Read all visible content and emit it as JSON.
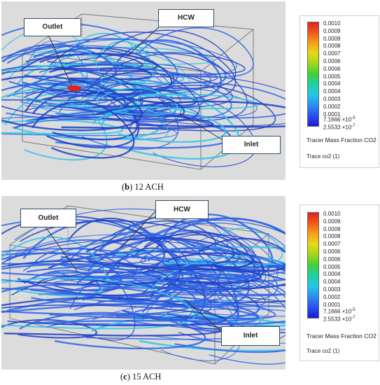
{
  "panels": [
    {
      "id": "b",
      "caption_letter": "b",
      "caption_text": "12 ACH",
      "labels": {
        "outlet": "Outlet",
        "hcw": "HCW",
        "inlet": "Inlet"
      },
      "legend": {
        "ticks": [
          "0.0010",
          "0.0009",
          "0.0009",
          "0.0008",
          "0.0007",
          "0.0006",
          "0.0006",
          "0.0005",
          "0.0004",
          "0.0004",
          "0.0003",
          "0.0002",
          "0.0001"
        ],
        "tick_low_1": "7.1666",
        "tick_low_1_exp": "×10",
        "tick_low_1_sup": "-5",
        "tick_low_2": "2.5533",
        "tick_low_2_exp": "×10",
        "tick_low_2_sup": "-7",
        "title": "Tracer Mass Fraction CO2",
        "trace": "Trace co2 (1)"
      }
    },
    {
      "id": "c",
      "caption_letter": "c",
      "caption_text": "15 ACH",
      "labels": {
        "outlet": "Outlet",
        "hcw": "HCW",
        "inlet": "Inlet"
      },
      "legend": {
        "ticks": [
          "0.0010",
          "0.0009",
          "0.0009",
          "0.0008",
          "0.0007",
          "0.0006",
          "0.0006",
          "0.0005",
          "0.0004",
          "0.0004",
          "0.0003",
          "0.0002",
          "0.0001"
        ],
        "tick_low_1": "7.1666",
        "tick_low_1_exp": "×10",
        "tick_low_1_sup": "-5",
        "tick_low_2": "2.5533",
        "tick_low_2_exp": "×10",
        "tick_low_2_sup": "-7",
        "title": "Tracer Mass Fraction CO2",
        "trace": "Trace co2 (1)"
      }
    }
  ],
  "colors": {
    "scene_bg": "#dcdcdc",
    "streamline_blue": "#2b63e6",
    "streamline_dark": "#1d3fc4",
    "streamline_cyan": "#33c3e8",
    "hotspot_red": "#e0221e",
    "callout_border": "#2e4e6a",
    "colormap": [
      "#e0221e",
      "#ef5a1a",
      "#f7a11a",
      "#e8d915",
      "#9fd719",
      "#3fcf3a",
      "#1fd0a6",
      "#24c6e8",
      "#2a8ef0",
      "#2a4ff0",
      "#1a1ad8"
    ]
  }
}
